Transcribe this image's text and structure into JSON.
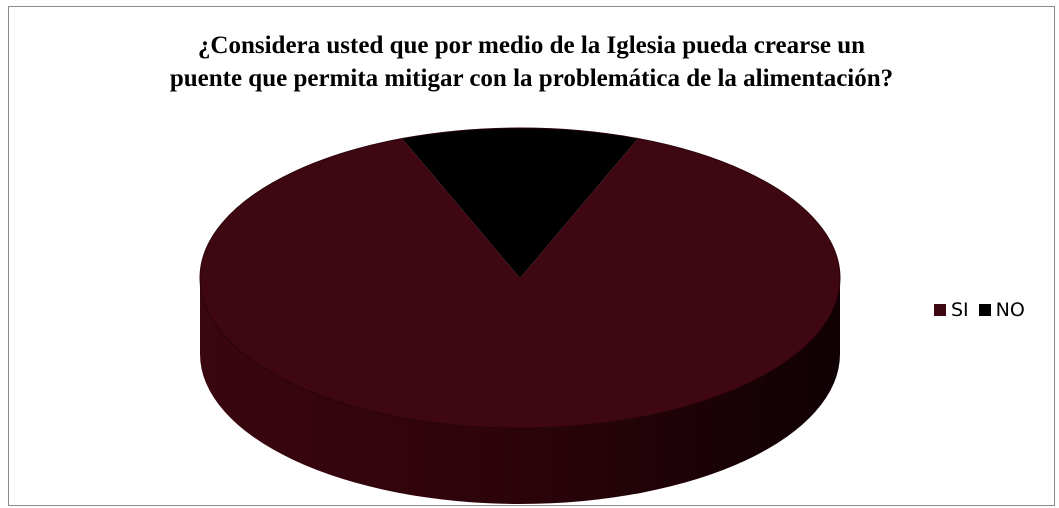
{
  "chart_data": {
    "type": "pie",
    "title_lines": [
      "¿Considera usted que por medio de la Iglesia pueda crearse un",
      "puente que permita mitigar con la problemática de la alimentación?"
    ],
    "three_d": true,
    "legend_position": "right",
    "categories": [
      "SI",
      "NO"
    ],
    "values": [
      88,
      12
    ],
    "colors": [
      "#3f0712",
      "#000000"
    ]
  }
}
